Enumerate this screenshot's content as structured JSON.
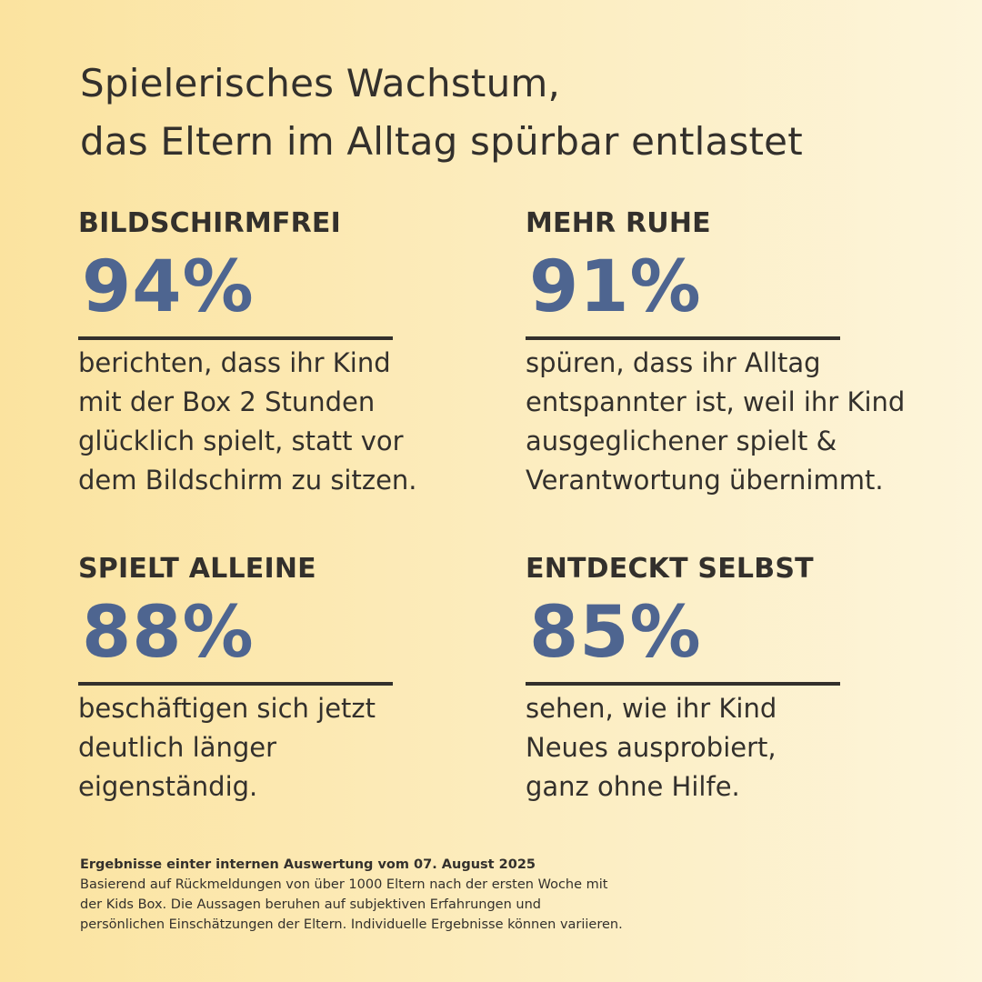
{
  "headline": {
    "line1": "Spielerisches Wachstum,",
    "line2": "das Eltern im Alltag spürbar entlastet"
  },
  "stats": [
    {
      "title": "BILDSCHIRMFREI",
      "value": "94%",
      "value_number": 94,
      "description_lines": [
        "berichten, dass ihr Kind",
        "mit der Box 2 Stunden",
        "glücklich spielt, statt vor",
        "dem Bildschirm zu sitzen."
      ]
    },
    {
      "title": "MEHR RUHE",
      "value": "91%",
      "value_number": 91,
      "description_lines": [
        "spüren, dass ihr Alltag",
        "entspannter ist, weil ihr Kind",
        "ausgeglichener spielt &",
        "Verantwortung übernimmt."
      ]
    },
    {
      "title": "SPIELT ALLEINE",
      "value": "88%",
      "value_number": 88,
      "description_lines": [
        "beschäftigen sich jetzt",
        "deutlich länger",
        "eigenständig."
      ]
    },
    {
      "title": "ENTDECKT SELBST",
      "value": "85%",
      "value_number": 85,
      "description_lines": [
        "sehen, wie ihr Kind",
        "Neues ausprobiert,",
        "ganz ohne Hilfe."
      ]
    }
  ],
  "footnote": {
    "title": "Ergebnisse einter internen Auswertung vom 07. August 2025",
    "lines": [
      "Basierend auf Rückmeldungen von über 1000 Eltern nach der ersten Woche mit",
      "der Kids Box.  Die Aussagen beruhen auf subjektiven Erfahrungen und",
      "persönlichen Einschätzungen der Eltern.  Individuelle Ergebnisse können variieren."
    ]
  },
  "colors": {
    "text": "#33302c",
    "accent": "#4e6590",
    "background_left": "#fbe39f",
    "background_right": "#fdf5db"
  }
}
